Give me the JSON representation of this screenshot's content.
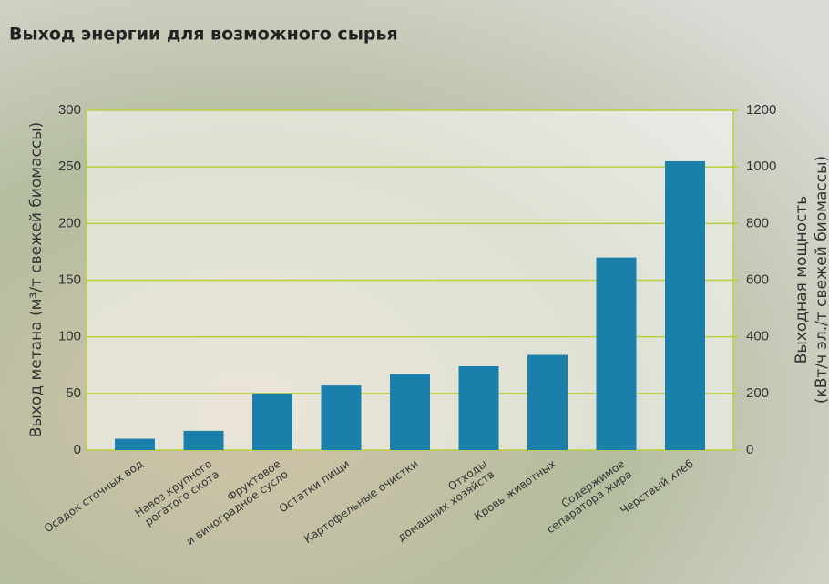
{
  "chart_data": {
    "type": "bar",
    "title": "Выход энергии для возможного сырья",
    "ylabel": "Выход метана (м³/т свежей биомассы)",
    "y2label": [
      "Выходная мощность",
      "(кВт/ч эл./т свежей биомассы)"
    ],
    "categories": [
      [
        "Осадок сточных вод"
      ],
      [
        "Навоз крупного",
        "рогатого скота"
      ],
      [
        "Фруктовое",
        "и виноградное сусло"
      ],
      [
        "Остатки пищи"
      ],
      [
        "Картофельные очистки"
      ],
      [
        "Отходы",
        "домашних хозяйств"
      ],
      [
        "Кровь животных"
      ],
      [
        "Содержимое",
        "сепаратора жира"
      ],
      [
        "Черствый хлеб"
      ]
    ],
    "values": [
      10,
      17,
      50,
      57,
      67,
      74,
      84,
      170,
      255
    ],
    "color": "#1a7fab",
    "ylim": [
      0,
      300
    ],
    "yticks": [
      0,
      50,
      100,
      150,
      200,
      250,
      300
    ],
    "y2lim": [
      0,
      1200
    ],
    "y2ticks": [
      0,
      200,
      400,
      600,
      800,
      1000,
      1200
    ],
    "grid": true,
    "grid_color": "#b9cf3c"
  }
}
